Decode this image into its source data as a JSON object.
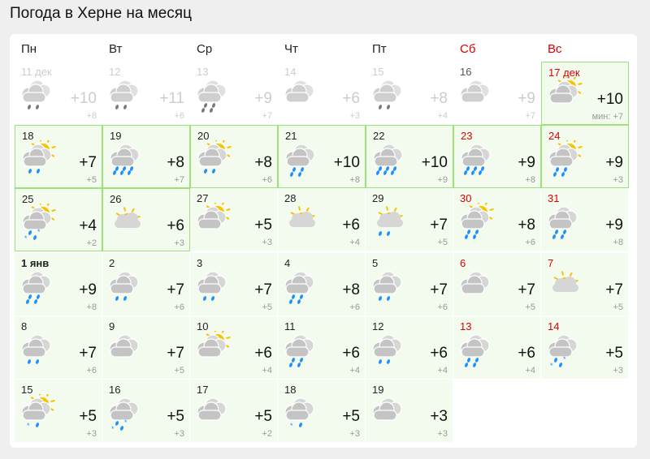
{
  "title": "Погода в Херне на месяц",
  "weekdays": [
    {
      "label": "Пн"
    },
    {
      "label": "Вт"
    },
    {
      "label": "Ср"
    },
    {
      "label": "Чт"
    },
    {
      "label": "Пт"
    },
    {
      "label": "Сб",
      "weekend": true
    },
    {
      "label": "Вс",
      "weekend": true
    }
  ],
  "colors": {
    "weekend": "#dd0000",
    "highlight_border": "#9be07a",
    "cell_bg": "#f3fbee",
    "sun": "#f7c200",
    "drop": "#1e90ff",
    "cloud": "#d6d6d6"
  },
  "days": [
    {
      "date": "11 дек",
      "max": "+10",
      "min": "+8",
      "icon": "cloud",
      "precip": "rain-light",
      "past": true
    },
    {
      "date": "12",
      "max": "+11",
      "min": "+6",
      "icon": "cloud",
      "precip": "rain-light",
      "past": true
    },
    {
      "date": "13",
      "max": "+9",
      "min": "+7",
      "icon": "cloud",
      "precip": "rain",
      "past": true
    },
    {
      "date": "14",
      "max": "+6",
      "min": "+3",
      "icon": "cloud",
      "precip": "",
      "past": true
    },
    {
      "date": "15",
      "max": "+8",
      "min": "+4",
      "icon": "cloud",
      "precip": "rain-light",
      "past": true
    },
    {
      "date": "16",
      "max": "+9",
      "min": "+7",
      "icon": "cloud",
      "precip": "",
      "past": true,
      "dark": true
    },
    {
      "date": "17 дек",
      "max": "+10",
      "min": "мин: +7",
      "icon": "cloud-sun",
      "precip": "",
      "today": true,
      "red": true
    },
    {
      "date": "18",
      "max": "+7",
      "min": "+5",
      "icon": "cloud-sun",
      "precip": "rain-light",
      "bord": true
    },
    {
      "date": "19",
      "max": "+8",
      "min": "+7",
      "icon": "cloud",
      "precip": "rain-heavy",
      "bord": true
    },
    {
      "date": "20",
      "max": "+8",
      "min": "+6",
      "icon": "cloud-sun",
      "precip": "rain-light",
      "bord": true
    },
    {
      "date": "21",
      "max": "+10",
      "min": "+8",
      "icon": "cloud",
      "precip": "rain",
      "bord": true
    },
    {
      "date": "22",
      "max": "+10",
      "min": "+9",
      "icon": "cloud",
      "precip": "rain-heavy",
      "bord": true
    },
    {
      "date": "23",
      "max": "+9",
      "min": "+8",
      "icon": "cloud",
      "precip": "rain-heavy",
      "bord": true,
      "red": true
    },
    {
      "date": "24",
      "max": "+9",
      "min": "+3",
      "icon": "cloud-sun",
      "precip": "rain",
      "bord": true,
      "red": true
    },
    {
      "date": "25",
      "max": "+4",
      "min": "+2",
      "icon": "cloud-sun",
      "precip": "sleet",
      "bord": true
    },
    {
      "date": "26",
      "max": "+6",
      "min": "+3",
      "icon": "sun-cloud",
      "precip": "",
      "bord": true
    },
    {
      "date": "27",
      "max": "+5",
      "min": "+3",
      "icon": "cloud-sun",
      "precip": ""
    },
    {
      "date": "28",
      "max": "+6",
      "min": "+4",
      "icon": "sun-cloud",
      "precip": ""
    },
    {
      "date": "29",
      "max": "+7",
      "min": "+5",
      "icon": "sun-cloud",
      "precip": "rain-light"
    },
    {
      "date": "30",
      "max": "+8",
      "min": "+6",
      "icon": "cloud-sun",
      "precip": "rain",
      "red": true
    },
    {
      "date": "31",
      "max": "+9",
      "min": "+8",
      "icon": "cloud",
      "precip": "rain",
      "red": true
    },
    {
      "date": "1 янв",
      "max": "+9",
      "min": "+8",
      "icon": "cloud",
      "precip": "rain",
      "bold": true
    },
    {
      "date": "2",
      "max": "+7",
      "min": "+6",
      "icon": "cloud",
      "precip": "rain-light"
    },
    {
      "date": "3",
      "max": "+7",
      "min": "+5",
      "icon": "cloud",
      "precip": "rain-light"
    },
    {
      "date": "4",
      "max": "+8",
      "min": "+6",
      "icon": "cloud",
      "precip": "rain"
    },
    {
      "date": "5",
      "max": "+7",
      "min": "+6",
      "icon": "cloud",
      "precip": "rain-light"
    },
    {
      "date": "6",
      "max": "+7",
      "min": "+5",
      "icon": "cloud",
      "precip": "",
      "red": true
    },
    {
      "date": "7",
      "max": "+7",
      "min": "+5",
      "icon": "sun-cloud",
      "precip": "",
      "red": true
    },
    {
      "date": "8",
      "max": "+7",
      "min": "+6",
      "icon": "cloud",
      "precip": "rain-light"
    },
    {
      "date": "9",
      "max": "+7",
      "min": "+5",
      "icon": "cloud",
      "precip": ""
    },
    {
      "date": "10",
      "max": "+6",
      "min": "+4",
      "icon": "cloud-sun",
      "precip": ""
    },
    {
      "date": "11",
      "max": "+6",
      "min": "+4",
      "icon": "cloud",
      "precip": "rain"
    },
    {
      "date": "12",
      "max": "+6",
      "min": "+4",
      "icon": "cloud",
      "precip": "rain-light"
    },
    {
      "date": "13",
      "max": "+6",
      "min": "+4",
      "icon": "cloud",
      "precip": "rain",
      "red": true
    },
    {
      "date": "14",
      "max": "+5",
      "min": "+3",
      "icon": "cloud",
      "precip": "sleet",
      "red": true
    },
    {
      "date": "15",
      "max": "+5",
      "min": "+3",
      "icon": "cloud-sun",
      "precip": "snow-light"
    },
    {
      "date": "16",
      "max": "+5",
      "min": "+3",
      "icon": "cloud",
      "precip": "sleet"
    },
    {
      "date": "17",
      "max": "+5",
      "min": "+2",
      "icon": "cloud",
      "precip": ""
    },
    {
      "date": "18",
      "max": "+5",
      "min": "+3",
      "icon": "cloud",
      "precip": "snow-light"
    },
    {
      "date": "19",
      "max": "+3",
      "min": "+3",
      "icon": "cloud",
      "precip": ""
    }
  ]
}
